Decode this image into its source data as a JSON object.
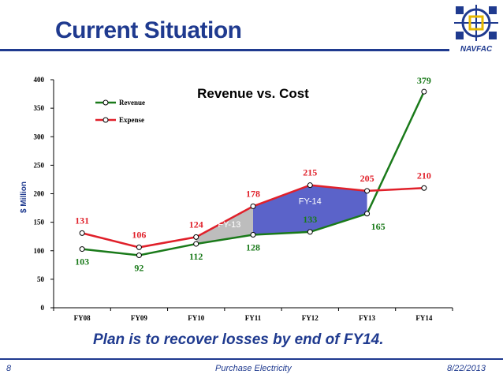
{
  "slide": {
    "title": "Current Situation",
    "caption": "Plan is to recover losses by end of FY14.",
    "footer_page": "8",
    "footer_center": "Purchase Electricity",
    "footer_date": "8/22/2013",
    "logo_text": "NAVFAC"
  },
  "colors": {
    "title": "#1f3a8f",
    "revenue": "#1a7a1a",
    "expense": "#e0202a",
    "shade_fy13": "#bdbdbd",
    "shade_fy14": "#5b63c9"
  },
  "chart_data": {
    "type": "line",
    "title": "Revenue vs. Cost",
    "ylabel": "$ Million",
    "xlabel": "",
    "categories": [
      "FY08",
      "FY09",
      "FY10",
      "FY11",
      "FY12",
      "FY13",
      "FY14"
    ],
    "ylim": [
      0,
      400
    ],
    "yticks": [
      "0",
      "50",
      "100",
      "150",
      "200",
      "250",
      "300",
      "350",
      "400"
    ],
    "grid": false,
    "legend": "top-left",
    "series": [
      {
        "name": "Revenue",
        "values": [
          103,
          92,
          112,
          128,
          133,
          165,
          379
        ]
      },
      {
        "name": "Expense",
        "values": [
          131,
          106,
          124,
          178,
          215,
          205,
          210
        ]
      }
    ],
    "annotations": [
      "FY-13",
      "FY-14"
    ]
  }
}
